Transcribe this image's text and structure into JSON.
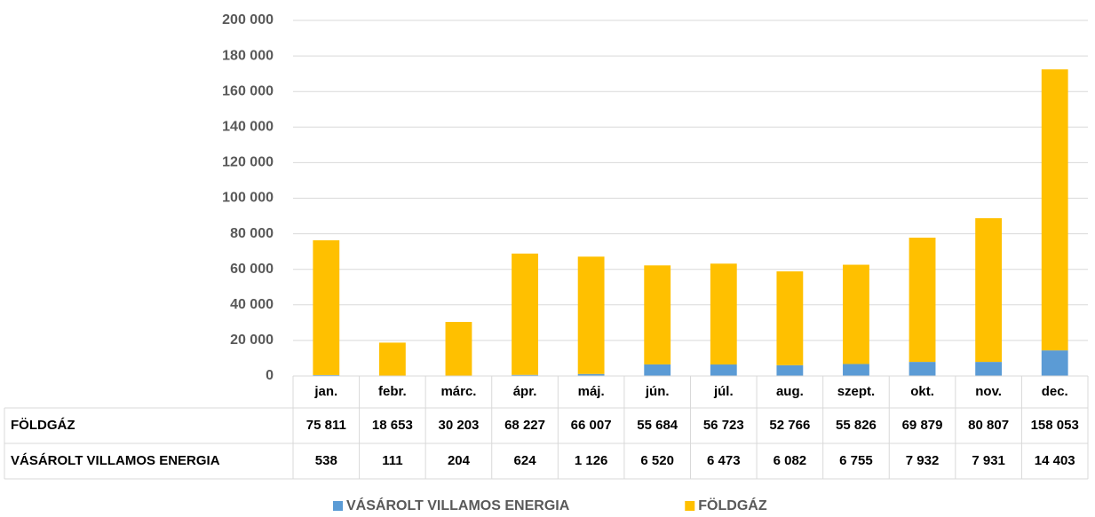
{
  "chart_data": {
    "type": "stacked_bar",
    "categories": [
      "jan.",
      "febr.",
      "márc.",
      "ápr.",
      "máj.",
      "jún.",
      "júl.",
      "aug.",
      "szept.",
      "okt.",
      "nov.",
      "dec."
    ],
    "series": [
      {
        "name": "VÁSÁROLT VILLAMOS ENERGIA",
        "color": "#5b9bd5",
        "values": [
          538,
          111,
          204,
          624,
          1126,
          6520,
          6473,
          6082,
          6755,
          7932,
          7931,
          14403
        ],
        "value_labels": [
          "538",
          "111",
          "204",
          "624",
          "1 126",
          "6 520",
          "6 473",
          "6 082",
          "6 755",
          "7 932",
          "7 931",
          "14 403"
        ]
      },
      {
        "name": "FÖLDGÁZ",
        "color": "#ffc000",
        "values": [
          75811,
          18653,
          30203,
          68227,
          66007,
          55684,
          56723,
          52766,
          55826,
          69879,
          80807,
          158053
        ],
        "value_labels": [
          "75 811",
          "18 653",
          "30 203",
          "68 227",
          "66 007",
          "55 684",
          "56 723",
          "52 766",
          "55 826",
          "69 879",
          "80 807",
          "158 053"
        ]
      }
    ],
    "ylim": [
      0,
      200000
    ],
    "yticks": [
      0,
      {
        "value": 20000,
        "label": "20 000"
      },
      {
        "value": 40000,
        "label": "40 000"
      },
      {
        "value": 60000,
        "label": "60 000"
      },
      {
        "value": 80000,
        "label": "80 000"
      },
      {
        "value": 100000,
        "label": "100 000"
      },
      {
        "value": 120000,
        "label": "120 000"
      },
      {
        "value": 140000,
        "label": "140 000"
      },
      {
        "value": 160000,
        "label": "160 000"
      },
      {
        "value": 180000,
        "label": "180 000"
      },
      {
        "value": 200000,
        "label": "200 000"
      }
    ],
    "grid": true
  }
}
